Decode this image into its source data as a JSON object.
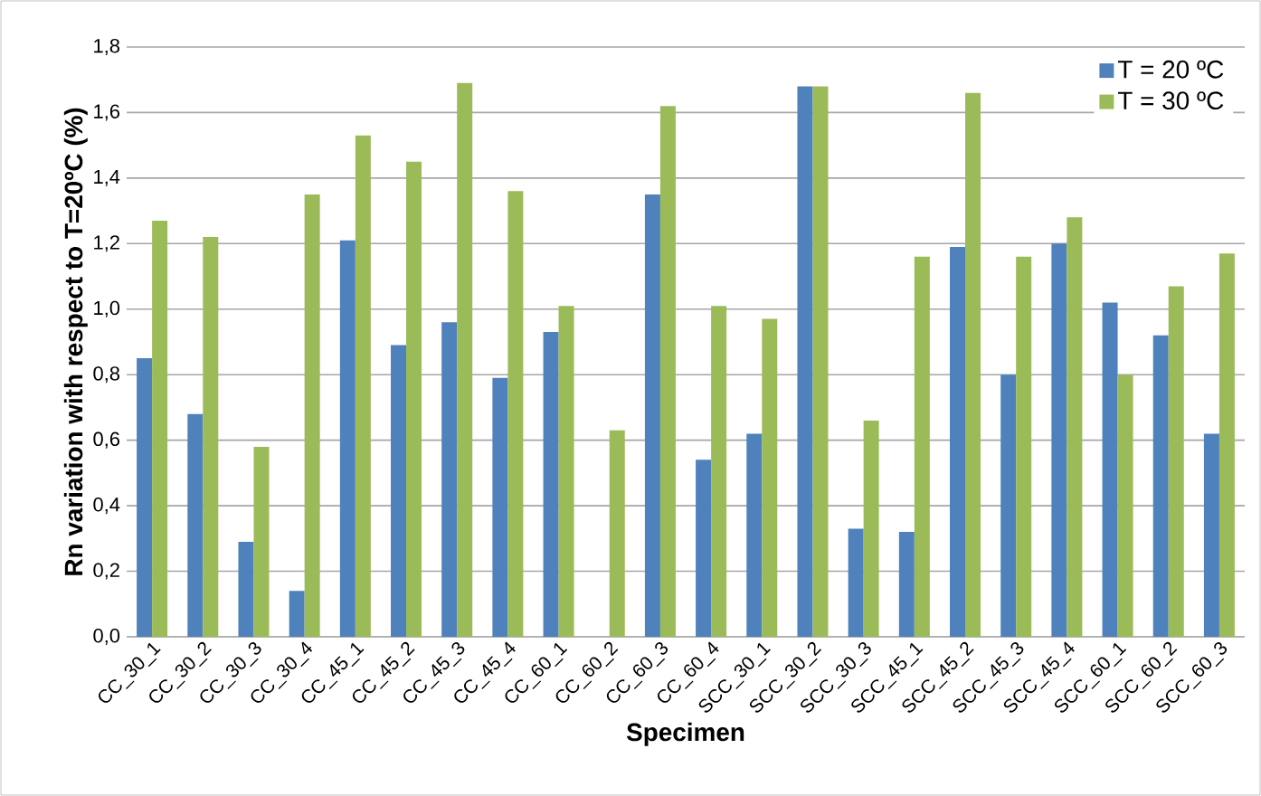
{
  "chart_data": {
    "type": "bar",
    "xlabel": "Specimen",
    "ylabel": "Rn variation with respect to T=20ºC (%)",
    "categories": [
      "CC_30_1",
      "CC_30_2",
      "CC_30_3",
      "CC_30_4",
      "CC_45_1",
      "CC_45_2",
      "CC_45_3",
      "CC_45_4",
      "CC_60_1",
      "CC_60_2",
      "CC_60_3",
      "CC_60_4",
      "SCC_30_1",
      "SCC_30_2",
      "SCC_30_3",
      "SCC_45_1",
      "SCC_45_2",
      "SCC_45_3",
      "SCC_45_4",
      "SCC_60_1",
      "SCC_60_2",
      "SCC_60_3"
    ],
    "series": [
      {
        "name": "T = 20 ºC",
        "color": "#4f81bd",
        "values": [
          0.85,
          0.68,
          0.29,
          0.14,
          1.21,
          0.89,
          0.96,
          0.79,
          0.93,
          null,
          1.35,
          0.54,
          0.62,
          1.68,
          0.33,
          0.32,
          1.19,
          0.8,
          1.2,
          1.02,
          0.92,
          0.62
        ]
      },
      {
        "name": "T = 30 ºC",
        "color": "#9bbb59",
        "values": [
          1.27,
          1.22,
          0.58,
          1.35,
          1.53,
          1.45,
          1.69,
          1.36,
          1.01,
          0.63,
          1.62,
          1.01,
          0.97,
          1.68,
          0.66,
          1.16,
          1.66,
          1.16,
          1.28,
          0.8,
          1.07,
          1.17
        ]
      }
    ],
    "ylim": [
      0,
      1.8
    ],
    "yticks": [
      {
        "value": 0,
        "label": "0,0"
      },
      {
        "value": 0.2,
        "label": "0,2"
      },
      {
        "value": 0.4,
        "label": "0,4"
      },
      {
        "value": 0.6,
        "label": "0,6"
      },
      {
        "value": 0.8,
        "label": "0,8"
      },
      {
        "value": 1.0,
        "label": "1,0"
      },
      {
        "value": 1.2,
        "label": "1,2"
      },
      {
        "value": 1.4,
        "label": "1,4"
      },
      {
        "value": 1.6,
        "label": "1,6"
      },
      {
        "value": 1.8,
        "label": "1,8"
      }
    ],
    "grid": "y",
    "legend": "top right"
  }
}
